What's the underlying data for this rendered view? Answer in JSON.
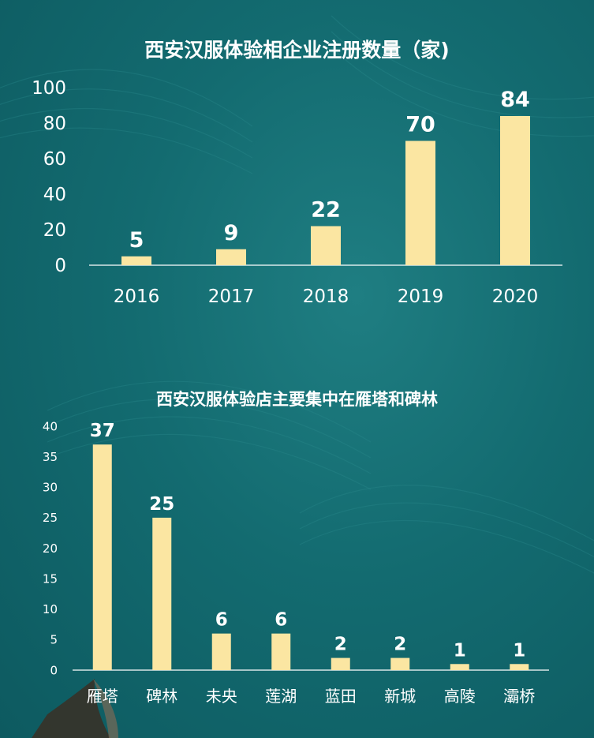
{
  "colors": {
    "background": "#136b70",
    "bar": "#fbe6a2",
    "text": "#ffffff",
    "axis": "#ffffff"
  },
  "chart_data": [
    {
      "type": "bar",
      "title": "西安汉服体验相企业注册数量（家)",
      "categories": [
        "2016",
        "2017",
        "2018",
        "2019",
        "2020"
      ],
      "values": [
        5,
        9,
        22,
        70,
        84
      ],
      "ylim": [
        0,
        100
      ],
      "yticks": [
        "0",
        "20",
        "40",
        "60",
        "80",
        "100"
      ],
      "grid": false,
      "data_labels": true
    },
    {
      "type": "bar",
      "title": "西安汉服体验店主要集中在雁塔和碑林",
      "categories": [
        "雁塔",
        "碑林",
        "未央",
        "莲湖",
        "蓝田",
        "新城",
        "高陵",
        "灞桥"
      ],
      "values": [
        37,
        25,
        6,
        6,
        2,
        2,
        1,
        1
      ],
      "ylim": [
        0,
        40
      ],
      "yticks": [
        "0",
        "5",
        "10",
        "15",
        "20",
        "25",
        "30",
        "35",
        "40"
      ],
      "grid": false,
      "data_labels": true
    }
  ]
}
